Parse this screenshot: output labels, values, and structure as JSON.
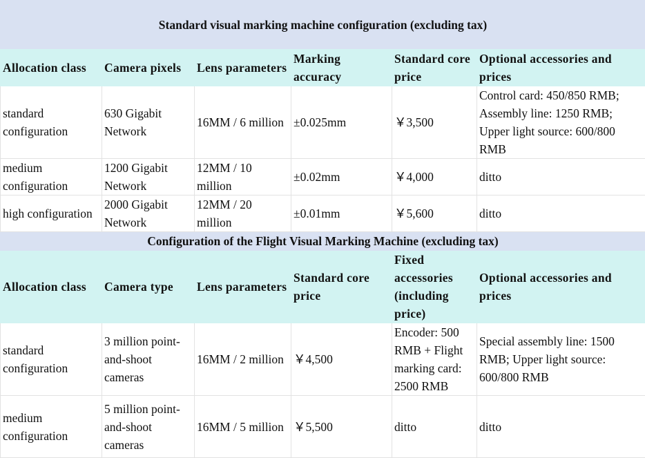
{
  "tables": [
    {
      "title": "Standard visual marking machine configuration (excluding tax)",
      "headers": [
        "Allocation class",
        "Camera pixels",
        "Lens parameters",
        "Marking accuracy",
        "Standard core price",
        "Optional accessories and prices"
      ],
      "rows": [
        [
          "standard configuration",
          "630 Gigabit Network",
          "16MM / 6 million",
          "±0.025mm",
          "￥3,500",
          "Control card: 450/850 RMB; Assembly line: 1250 RMB; Upper light source: 600/800 RMB"
        ],
        [
          "medium configuration",
          "1200 Gigabit Network",
          "12MM / 10 million",
          "±0.02mm",
          "￥4,000",
          "ditto"
        ],
        [
          "high configuration",
          "2000 Gigabit Network",
          "12MM / 20 million",
          "±0.01mm",
          "￥5,600",
          "ditto"
        ]
      ]
    },
    {
      "title": "Configuration of the Flight Visual Marking Machine (excluding tax)",
      "headers": [
        "Allocation class",
        "Camera type",
        "Lens parameters",
        "Standard core price",
        "Fixed accessories (including price)",
        "Optional accessories and prices"
      ],
      "rows": [
        [
          "standard configuration",
          "3 million point-and-shoot cameras",
          "16MM / 2 million",
          "￥4,500",
          "Encoder: 500 RMB + Flight marking card: 2500 RMB",
          "Special assembly line: 1500 RMB; Upper light source: 600/800 RMB"
        ],
        [
          "medium configuration",
          "5 million point-and-shoot cameras",
          "16MM / 5 million",
          "￥5,500",
          "ditto",
          "ditto"
        ]
      ]
    }
  ]
}
